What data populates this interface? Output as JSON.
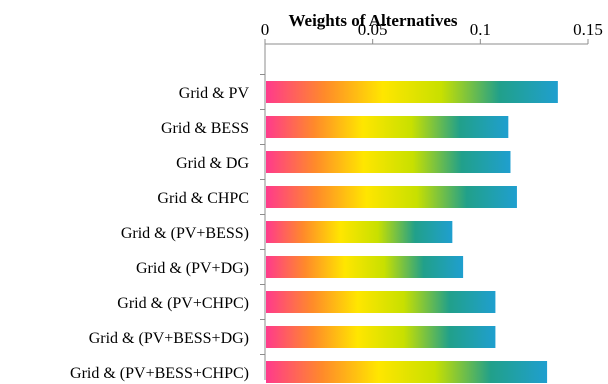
{
  "chart_data": {
    "type": "bar",
    "orientation": "horizontal",
    "title": "Weights of Alternatives",
    "xlabel": "",
    "ylabel": "",
    "xlim": [
      0,
      0.15
    ],
    "xticks": [
      0,
      0.05,
      0.1,
      0.15
    ],
    "xtick_labels": [
      "0",
      "0.05",
      "0.1",
      "0.15"
    ],
    "x_axis_position": "top",
    "grid": false,
    "categories": [
      "Grid & PV",
      "Grid & BESS",
      "Grid & DG",
      "Grid & CHPC",
      "Grid & (PV+BESS)",
      "Grid & (PV+DG)",
      "Grid & (PV+CHPC)",
      "Grid & (PV+BESS+DG)",
      "Grid & (PV+BESS+CHPC)"
    ],
    "values": [
      0.136,
      0.113,
      0.114,
      0.117,
      0.087,
      0.092,
      0.107,
      0.107,
      0.131
    ],
    "bar_gradient": [
      "#ff3a8c",
      "#ff8a2a",
      "#ffe600",
      "#c8e000",
      "#21a08a",
      "#1f9fcf"
    ]
  }
}
